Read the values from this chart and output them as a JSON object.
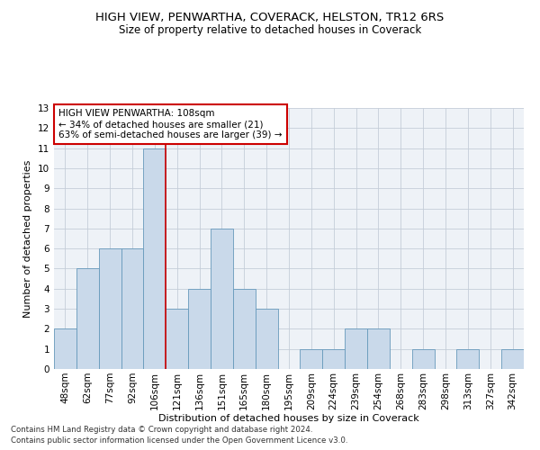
{
  "title": "HIGH VIEW, PENWARTHA, COVERACK, HELSTON, TR12 6RS",
  "subtitle": "Size of property relative to detached houses in Coverack",
  "xlabel": "Distribution of detached houses by size in Coverack",
  "ylabel": "Number of detached properties",
  "categories": [
    "48sqm",
    "62sqm",
    "77sqm",
    "92sqm",
    "106sqm",
    "121sqm",
    "136sqm",
    "151sqm",
    "165sqm",
    "180sqm",
    "195sqm",
    "209sqm",
    "224sqm",
    "239sqm",
    "254sqm",
    "268sqm",
    "283sqm",
    "298sqm",
    "313sqm",
    "327sqm",
    "342sqm"
  ],
  "values": [
    2,
    5,
    6,
    6,
    11,
    3,
    4,
    7,
    4,
    3,
    0,
    1,
    1,
    2,
    2,
    0,
    1,
    0,
    1,
    0,
    1
  ],
  "bar_color": "#c9d9ea",
  "bar_edgecolor": "#6699bb",
  "vline_x": 4.5,
  "vline_color": "#cc0000",
  "ylim": [
    0,
    13
  ],
  "yticks": [
    0,
    1,
    2,
    3,
    4,
    5,
    6,
    7,
    8,
    9,
    10,
    11,
    12,
    13
  ],
  "annotation_title": "HIGH VIEW PENWARTHA: 108sqm",
  "annotation_line1": "← 34% of detached houses are smaller (21)",
  "annotation_line2": "63% of semi-detached houses are larger (39) →",
  "footer1": "Contains HM Land Registry data © Crown copyright and database right 2024.",
  "footer2": "Contains public sector information licensed under the Open Government Licence v3.0.",
  "bg_color": "#eef2f7",
  "grid_color": "#c5cdd8",
  "title_fontsize": 9.5,
  "subtitle_fontsize": 8.5,
  "ylabel_fontsize": 8,
  "xlabel_fontsize": 8,
  "tick_fontsize": 7.5
}
